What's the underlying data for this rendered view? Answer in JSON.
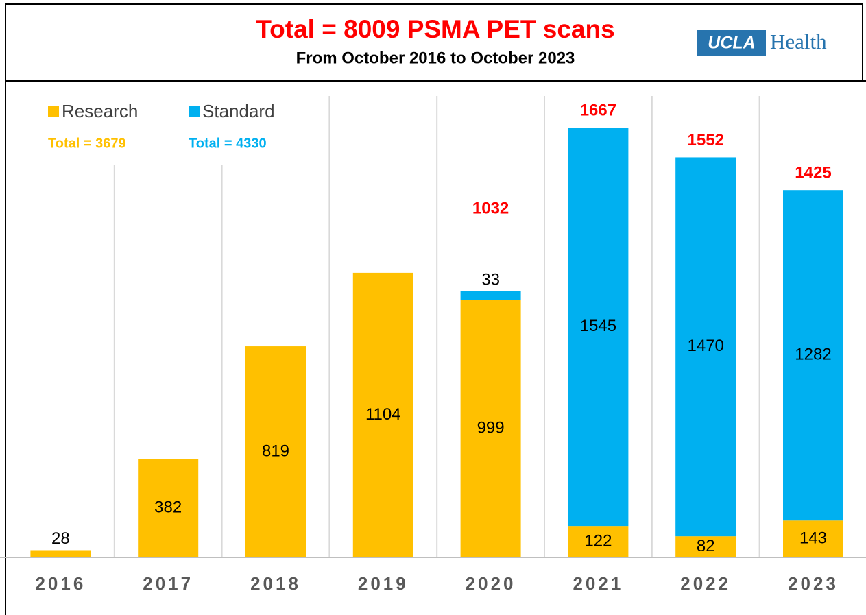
{
  "chart_data": {
    "type": "stacked-bar",
    "title": "Total = 8009 PSMA PET scans",
    "subtitle": "From October 2016 to October 2023",
    "logo": {
      "badge": "UCLA",
      "text": "Health"
    },
    "categories": [
      "2016",
      "2017",
      "2018",
      "2019",
      "2020",
      "2021",
      "2022",
      "2023"
    ],
    "series": [
      {
        "name": "Research",
        "color": "#ffc000",
        "total_label": "Total = 3679",
        "values": [
          28,
          382,
          819,
          1104,
          999,
          122,
          82,
          143
        ]
      },
      {
        "name": "Standard",
        "color": "#00b0f0",
        "total_label": "Total = 4330",
        "values": [
          null,
          null,
          null,
          null,
          33,
          1545,
          1470,
          1282
        ]
      }
    ],
    "totals": [
      null,
      null,
      null,
      null,
      1032,
      1667,
      1552,
      1425
    ],
    "totals_color": "#ff0000"
  }
}
